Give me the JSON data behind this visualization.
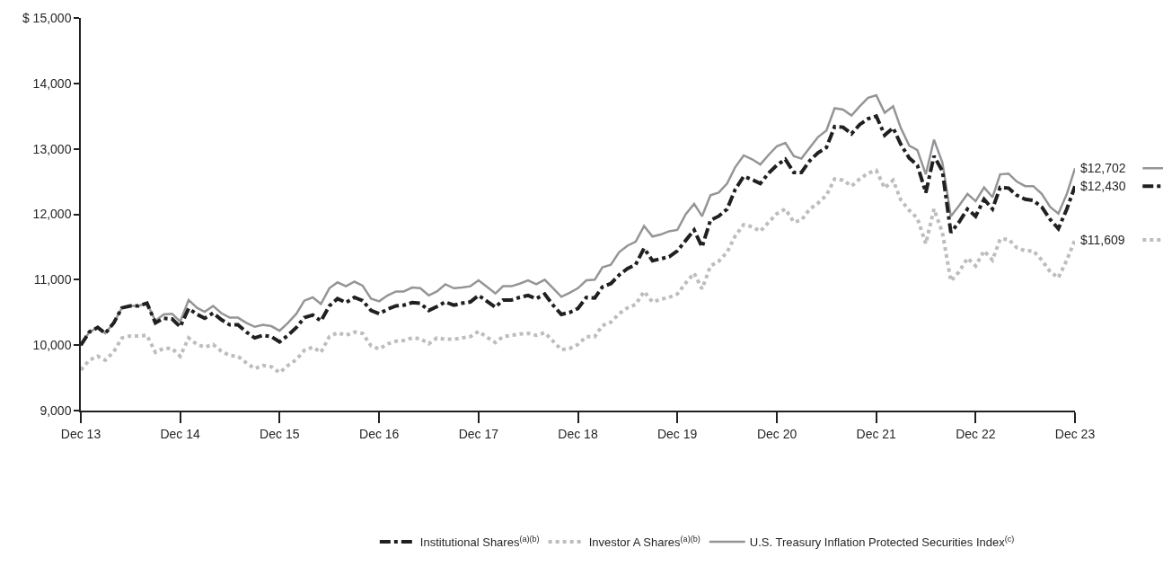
{
  "chart_data": {
    "type": "line",
    "x": [
      "2013-12",
      "2014-01",
      "2014-02",
      "2014-03",
      "2014-04",
      "2014-05",
      "2014-06",
      "2014-07",
      "2014-08",
      "2014-09",
      "2014-10",
      "2014-11",
      "2014-12",
      "2015-01",
      "2015-02",
      "2015-03",
      "2015-04",
      "2015-05",
      "2015-06",
      "2015-07",
      "2015-08",
      "2015-09",
      "2015-10",
      "2015-11",
      "2015-12",
      "2016-01",
      "2016-02",
      "2016-03",
      "2016-04",
      "2016-05",
      "2016-06",
      "2016-07",
      "2016-08",
      "2016-09",
      "2016-10",
      "2016-11",
      "2016-12",
      "2017-01",
      "2017-02",
      "2017-03",
      "2017-04",
      "2017-05",
      "2017-06",
      "2017-07",
      "2017-08",
      "2017-09",
      "2017-10",
      "2017-11",
      "2017-12",
      "2018-01",
      "2018-02",
      "2018-03",
      "2018-04",
      "2018-05",
      "2018-06",
      "2018-07",
      "2018-08",
      "2018-09",
      "2018-10",
      "2018-11",
      "2018-12",
      "2019-01",
      "2019-02",
      "2019-03",
      "2019-04",
      "2019-05",
      "2019-06",
      "2019-07",
      "2019-08",
      "2019-09",
      "2019-10",
      "2019-11",
      "2019-12",
      "2020-01",
      "2020-02",
      "2020-03",
      "2020-04",
      "2020-05",
      "2020-06",
      "2020-07",
      "2020-08",
      "2020-09",
      "2020-10",
      "2020-11",
      "2020-12",
      "2021-01",
      "2021-02",
      "2021-03",
      "2021-04",
      "2021-05",
      "2021-06",
      "2021-07",
      "2021-08",
      "2021-09",
      "2021-10",
      "2021-11",
      "2021-12",
      "2022-01",
      "2022-02",
      "2022-03",
      "2022-04",
      "2022-05",
      "2022-06",
      "2022-07",
      "2022-08",
      "2022-09",
      "2022-10",
      "2022-11",
      "2022-12",
      "2023-01",
      "2023-02",
      "2023-03",
      "2023-04",
      "2023-05",
      "2023-06",
      "2023-07",
      "2023-08",
      "2023-09",
      "2023-10",
      "2023-11",
      "2023-12"
    ],
    "series": [
      {
        "name": "Institutional Shares$^{(a)(b)}$",
        "color": "#231f20",
        "line_style": "dashed",
        "values": [
          10000,
          10200,
          10270,
          10180,
          10340,
          10570,
          10600,
          10600,
          10640,
          10340,
          10410,
          10400,
          10280,
          10560,
          10470,
          10410,
          10490,
          10390,
          10310,
          10310,
          10200,
          10110,
          10150,
          10130,
          10050,
          10150,
          10270,
          10420,
          10460,
          10370,
          10600,
          10710,
          10650,
          10730,
          10680,
          10530,
          10480,
          10550,
          10600,
          10610,
          10650,
          10640,
          10530,
          10590,
          10660,
          10610,
          10640,
          10660,
          10760,
          10670,
          10580,
          10690,
          10690,
          10730,
          10760,
          10710,
          10780,
          10610,
          10470,
          10500,
          10560,
          10730,
          10720,
          10890,
          10940,
          11070,
          11170,
          11230,
          11480,
          11290,
          11320,
          11350,
          11440,
          11600,
          11760,
          11500,
          11910,
          11970,
          12080,
          12380,
          12580,
          12530,
          12470,
          12630,
          12750,
          12840,
          12640,
          12640,
          12820,
          12940,
          13020,
          13340,
          13330,
          13230,
          13370,
          13460,
          13500,
          13210,
          13320,
          13070,
          12860,
          12750,
          12330,
          12890,
          12660,
          11720,
          11880,
          12080,
          11970,
          12230,
          12080,
          12410,
          12400,
          12290,
          12230,
          12210,
          12110,
          11920,
          11780,
          12080,
          12430
        ]
      },
      {
        "name": "Investor A Shares$^{(a)(b)}$",
        "color": "#bcbdc0",
        "line_style": "dotted",
        "values": [
          9620,
          9770,
          9830,
          9770,
          9900,
          10110,
          10140,
          10140,
          10150,
          9890,
          9950,
          9950,
          9830,
          10110,
          10010,
          9970,
          10010,
          9910,
          9840,
          9830,
          9730,
          9640,
          9690,
          9670,
          9580,
          9690,
          9780,
          9920,
          9970,
          9890,
          10130,
          10190,
          10150,
          10200,
          10180,
          9990,
          9940,
          10020,
          10060,
          10070,
          10110,
          10100,
          10020,
          10110,
          10090,
          10090,
          10110,
          10130,
          10210,
          10120,
          10040,
          10130,
          10150,
          10170,
          10180,
          10150,
          10190,
          10060,
          9930,
          9950,
          10010,
          10130,
          10130,
          10300,
          10350,
          10480,
          10570,
          10620,
          10820,
          10660,
          10700,
          10730,
          10780,
          10950,
          11100,
          10860,
          11210,
          11280,
          11420,
          11670,
          11840,
          11810,
          11740,
          11880,
          12010,
          12080,
          11880,
          11910,
          12080,
          12170,
          12290,
          12540,
          12520,
          12430,
          12540,
          12630,
          12670,
          12400,
          12520,
          12220,
          12060,
          11940,
          11550,
          12080,
          11720,
          10980,
          11120,
          11330,
          11210,
          11440,
          11300,
          11620,
          11620,
          11490,
          11440,
          11440,
          11300,
          11120,
          11030,
          11300,
          11609
        ]
      },
      {
        "name": "U.S. Treasury Inflation Protected Securities Index$^{(c)}$",
        "color": "#939598",
        "line_style": "solid",
        "values": [
          10000,
          10200,
          10270,
          10180,
          10340,
          10570,
          10600,
          10600,
          10640,
          10370,
          10470,
          10480,
          10360,
          10690,
          10570,
          10510,
          10600,
          10490,
          10420,
          10420,
          10340,
          10280,
          10310,
          10290,
          10220,
          10340,
          10480,
          10680,
          10730,
          10630,
          10870,
          10960,
          10900,
          10970,
          10910,
          10710,
          10670,
          10760,
          10820,
          10820,
          10880,
          10870,
          10760,
          10820,
          10930,
          10870,
          10880,
          10900,
          10990,
          10890,
          10790,
          10900,
          10900,
          10940,
          10990,
          10930,
          11000,
          10870,
          10740,
          10800,
          10870,
          10990,
          11000,
          11190,
          11230,
          11420,
          11520,
          11580,
          11820,
          11660,
          11690,
          11740,
          11760,
          12000,
          12160,
          11970,
          12290,
          12330,
          12470,
          12720,
          12900,
          12840,
          12760,
          12910,
          13040,
          13090,
          12890,
          12850,
          13020,
          13180,
          13280,
          13620,
          13600,
          13510,
          13650,
          13780,
          13820,
          13550,
          13650,
          13320,
          13050,
          12980,
          12610,
          13140,
          12790,
          11970,
          12130,
          12310,
          12200,
          12410,
          12260,
          12610,
          12620,
          12500,
          12430,
          12430,
          12310,
          12110,
          12010,
          12310,
          12702
        ]
      }
    ],
    "annotations": [
      {
        "text": "$12,702",
        "x": "2023-12",
        "y": 12702
      },
      {
        "text": "$12,430",
        "x": "2023-12",
        "y": 12430
      },
      {
        "text": "$11,609",
        "x": "2023-12",
        "y": 11609
      }
    ],
    "xlim": [
      "2013-12",
      "2023-12"
    ],
    "xticks": [
      {
        "value": "2013-12",
        "label": "Dec 13"
      },
      {
        "value": "2014-12",
        "label": "Dec 14"
      },
      {
        "value": "2015-12",
        "label": "Dec 15"
      },
      {
        "value": "2016-12",
        "label": "Dec 16"
      },
      {
        "value": "2017-12",
        "label": "Dec 17"
      },
      {
        "value": "2018-12",
        "label": "Dec 18"
      },
      {
        "value": "2019-12",
        "label": "Dec 19"
      },
      {
        "value": "2020-12",
        "label": "Dec 20"
      },
      {
        "value": "2021-12",
        "label": "Dec 21"
      },
      {
        "value": "2022-12",
        "label": "Dec 22"
      },
      {
        "value": "2023-12",
        "label": "Dec 23"
      }
    ],
    "ylim": [
      9000,
      15000
    ],
    "yticks": [
      {
        "value": 9000,
        "label": "9,000"
      },
      {
        "value": 10000,
        "label": "10,000"
      },
      {
        "value": 11000,
        "label": "11,000"
      },
      {
        "value": 12000,
        "label": "12,000"
      },
      {
        "value": 13000,
        "label": "13,000"
      },
      {
        "value": 14000,
        "label": "14,000"
      },
      {
        "value": 15000,
        "label": "$ 15,000"
      }
    ],
    "legend": "bottom",
    "marker": "none"
  }
}
